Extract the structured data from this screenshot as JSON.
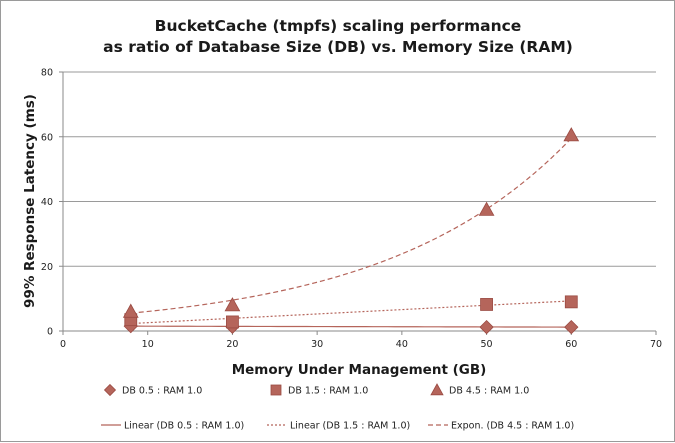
{
  "chart_data": {
    "type": "scatter",
    "title_lines": [
      "BucketCache (tmpfs) scaling performance",
      "as ratio of Database Size (DB) vs. Memory Size (RAM)"
    ],
    "xlabel": "Memory Under Management (GB)",
    "ylabel": "99% Response Latency (ms)",
    "xlim": [
      0,
      70
    ],
    "ylim": [
      0,
      80
    ],
    "xticks": [
      0,
      10,
      20,
      30,
      40,
      50,
      60,
      70
    ],
    "yticks": [
      0,
      20,
      40,
      60,
      80
    ],
    "grid": "horizontal",
    "legend_position": "bottom",
    "x": [
      8,
      20,
      50,
      60
    ],
    "series": [
      {
        "name": "DB 0.5 : RAM 1.0",
        "marker": "diamond",
        "color": "#b5655b",
        "values": [
          1.5,
          1.3,
          1.2,
          1.2
        ]
      },
      {
        "name": "DB 1.5 : RAM 1.0",
        "marker": "square",
        "color": "#b5655b",
        "values": [
          3.5,
          2.8,
          8.2,
          9.0
        ]
      },
      {
        "name": "DB 4.5 : RAM 1.0",
        "marker": "triangle",
        "color": "#b5655b",
        "values": [
          6.0,
          8.0,
          37.5,
          60.5
        ]
      }
    ],
    "trendlines": [
      {
        "name": "Linear (DB 0.5 : RAM 1.0)",
        "kind": "linear",
        "style": "solid",
        "color": "#b5655b",
        "x_range": [
          8,
          60
        ],
        "y_range": [
          1.5,
          1.2
        ]
      },
      {
        "name": "Linear (DB 1.5 : RAM 1.0)",
        "kind": "linear",
        "style": "dotted",
        "color": "#b5655b",
        "x_range": [
          8,
          60
        ],
        "y_range": [
          2.3,
          9.3
        ]
      },
      {
        "name": "Expon. (DB 4.5 : RAM 1.0)",
        "kind": "exponential",
        "style": "dashed",
        "color": "#b5655b",
        "x_range": [
          8,
          60
        ],
        "y_range": [
          5.5,
          59.5
        ]
      }
    ]
  }
}
